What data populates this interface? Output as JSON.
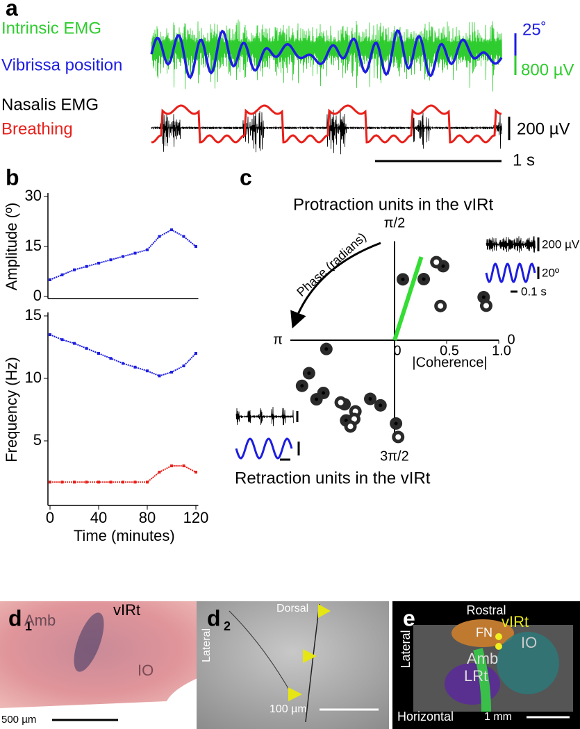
{
  "panel_a": {
    "label": "a",
    "traces": [
      {
        "name": "Intrinsic EMG",
        "color": "#2ecc2e"
      },
      {
        "name": "Vibrissa position",
        "color": "#1d1de0"
      },
      {
        "name": "Nasalis EMG",
        "color": "#000000"
      },
      {
        "name": "Breathing",
        "color": "#e8201a"
      }
    ],
    "scale_bars": [
      "25˚",
      "800 µV",
      "200 µV",
      "1 s"
    ]
  },
  "panel_b": {
    "label": "b"
  },
  "panel_c": {
    "label": "c"
  },
  "chart_data": [
    {
      "type": "scatter",
      "y_label": "Amplitude (º)",
      "x": [
        0,
        10,
        20,
        30,
        40,
        50,
        60,
        70,
        80,
        90,
        100,
        110,
        120
      ],
      "xlim": [
        0,
        122
      ],
      "ylim": [
        0,
        30
      ],
      "yticks": [
        0,
        15,
        30
      ],
      "series": [
        {
          "color": "#1d1de0",
          "values": [
            5,
            6.5,
            8,
            9,
            10,
            11,
            12,
            13,
            14,
            18,
            20,
            18,
            15
          ]
        }
      ]
    },
    {
      "type": "scatter",
      "y_label": "Frequency (Hz)",
      "x_label": "Time (minutes)",
      "x": [
        0,
        10,
        20,
        30,
        40,
        50,
        60,
        70,
        80,
        90,
        100,
        110,
        120
      ],
      "xlim": [
        0,
        122
      ],
      "ylim": [
        0,
        15
      ],
      "yticks": [
        5,
        10,
        15
      ],
      "xticks": [
        0,
        40,
        80,
        120
      ],
      "series": [
        {
          "color": "#1d1de0",
          "values": [
            13.5,
            13.1,
            12.8,
            12.4,
            12,
            11.6,
            11.2,
            10.9,
            10.6,
            10.2,
            10.5,
            11,
            12
          ]
        },
        {
          "color": "#e8201a",
          "values": [
            1.7,
            1.7,
            1.7,
            1.7,
            1.7,
            1.7,
            1.7,
            1.7,
            1.7,
            2.5,
            3,
            3,
            2.5
          ]
        }
      ]
    },
    {
      "type": "polar",
      "annotations": [
        "Protraction units in the vIRt",
        "Retraction units in the vIRt"
      ],
      "r_label": "|Coherence|",
      "angle_label": "Phase (radians)",
      "rlim": [
        0,
        1
      ],
      "rticks": [
        0,
        0.5,
        {
          "value": 1,
          "label": "1.0"
        }
      ],
      "angle_ticks": [
        {
          "value": 0,
          "label": "0"
        },
        {
          "value": 1.571,
          "label": "π/2"
        },
        {
          "value": 3.142,
          "label": "π"
        },
        {
          "value": 4.712,
          "label": "3π/2"
        }
      ],
      "mean": {
        "coherence": 0.84,
        "phase": 1.26,
        "color": "#33dd33"
      },
      "filled": {
        "coherence": [
          0.59,
          0.65,
          0.85,
          0.95,
          0.66,
          0.88,
          0.99,
          0.94,
          0.85,
          0.78,
          0.9,
          0.61,
          0.64,
          0.8
        ],
        "phase": [
          1.435,
          1.125,
          0.99,
          0.45,
          3.27,
          3.51,
          3.6,
          3.79,
          3.78,
          4.05,
          4.17,
          4.32,
          4.5,
          4.73
        ]
      },
      "open": {
        "coherence": [
          0.85,
          0.55,
          0.94,
          0.79,
          0.78,
          0.85,
          0.93,
          0.93
        ],
        "phase": [
          1.079,
          0.64,
          0.36,
          4.0,
          4.21,
          4.24,
          4.24,
          4.75
        ]
      },
      "inset_scale_bars": [
        "200 µV",
        "20º",
        "0.1 s"
      ]
    }
  ],
  "panel_d1": {
    "label": "d",
    "sub": "1",
    "regions": [
      "Amb",
      "vIRt",
      "IO"
    ],
    "scale_bar": "500 µm"
  },
  "panel_d2": {
    "label": "d",
    "sub": "2",
    "directions": [
      "Dorsal",
      "Lateral"
    ],
    "scale_bar": "100 µm"
  },
  "panel_e": {
    "label": "e",
    "directions": [
      "Rostral",
      "Lateral",
      "Horizontal"
    ],
    "regions": [
      "FN",
      "vIRt",
      "IO",
      "Amb",
      "LRt"
    ],
    "scale_bar": "1 mm"
  }
}
